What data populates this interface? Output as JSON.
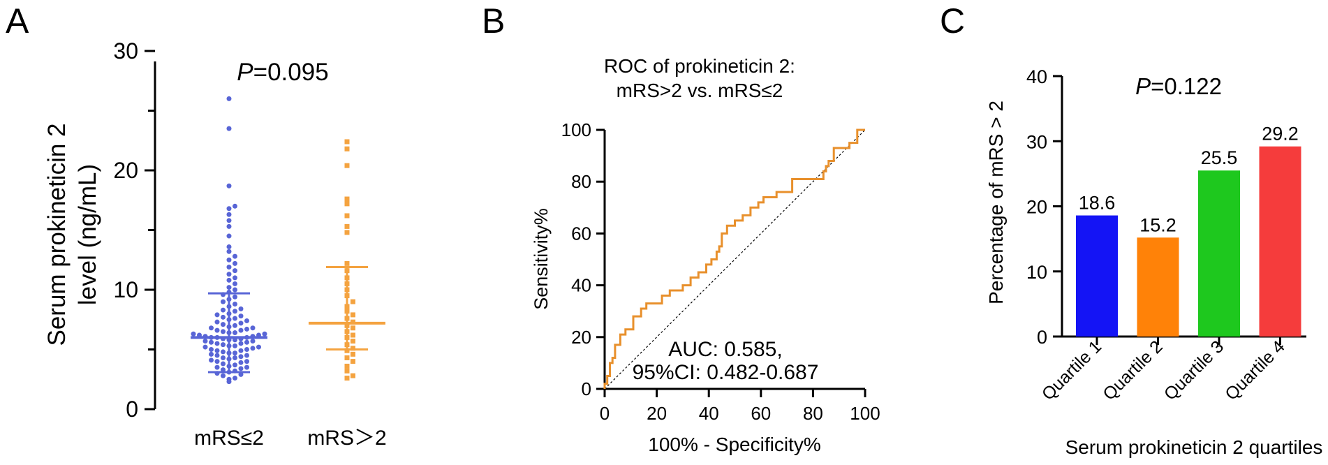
{
  "chart_data": [
    {
      "panel": "A",
      "type": "scatter",
      "ylabel_line1": "Serum prokineticin 2",
      "ylabel_line2": "level (ng/mL)",
      "annotation_italic": "P",
      "annotation_rest": "=0.095",
      "ylim": [
        0,
        30
      ],
      "yticks": [
        0,
        10,
        20,
        30
      ],
      "categories": [
        "mRS≤2",
        "mRS＞2"
      ],
      "series": [
        {
          "name": "mRS≤2",
          "color": "#5865d6",
          "median": 6.0,
          "q1": 3.1,
          "q3": 9.7,
          "values": [
            2.3,
            2.5,
            2.6,
            2.8,
            2.9,
            3.0,
            3.1,
            3.2,
            3.3,
            3.4,
            3.5,
            3.5,
            3.6,
            3.7,
            3.8,
            3.9,
            4.0,
            4.0,
            4.1,
            4.2,
            4.3,
            4.3,
            4.4,
            4.5,
            4.5,
            4.6,
            4.7,
            4.7,
            4.8,
            4.9,
            4.9,
            5.0,
            5.0,
            5.1,
            5.2,
            5.2,
            5.3,
            5.3,
            5.4,
            5.5,
            5.5,
            5.6,
            5.6,
            5.7,
            5.7,
            5.8,
            5.8,
            5.9,
            5.9,
            6.0,
            6.0,
            6.0,
            6.1,
            6.1,
            6.2,
            6.2,
            6.3,
            6.3,
            6.4,
            6.4,
            6.5,
            6.6,
            6.6,
            6.7,
            6.8,
            6.8,
            6.9,
            7.0,
            7.1,
            7.2,
            7.3,
            7.4,
            7.5,
            7.6,
            7.7,
            7.8,
            7.9,
            8.0,
            8.2,
            8.3,
            8.4,
            8.6,
            8.8,
            9.0,
            9.2,
            9.4,
            9.6,
            9.8,
            10.0,
            10.2,
            10.5,
            10.8,
            11.0,
            11.3,
            11.6,
            11.9,
            12.2,
            12.5,
            12.8,
            13.2,
            13.6,
            14.5,
            15.3,
            15.8,
            16.3,
            16.8,
            17.0,
            18.7,
            23.5,
            26.0
          ]
        },
        {
          "name": "mRS＞2",
          "color": "#f4a340",
          "median": 7.2,
          "q1": 5.0,
          "q3": 11.9,
          "values": [
            2.6,
            2.8,
            3.2,
            3.6,
            4.0,
            4.3,
            4.6,
            4.9,
            5.1,
            5.4,
            5.7,
            6.0,
            6.2,
            6.5,
            6.8,
            7.0,
            7.3,
            7.6,
            7.9,
            8.2,
            8.6,
            9.0,
            9.5,
            10.0,
            10.5,
            11.0,
            11.6,
            12.2,
            14.8,
            15.3,
            16.2,
            17.2,
            17.6,
            20.4,
            21.8,
            22.4
          ]
        }
      ]
    },
    {
      "panel": "B",
      "type": "line",
      "title_line1": "ROC of prokineticin 2:",
      "title_line2": "mRS>2  vs. mRS≤2",
      "xlabel": "100% - Specificity%",
      "ylabel": "Sensitivity%",
      "xlim": [
        0,
        100
      ],
      "ylim": [
        0,
        100
      ],
      "xticks": [
        0,
        20,
        40,
        60,
        80,
        100
      ],
      "yticks": [
        0,
        20,
        40,
        60,
        80,
        100
      ],
      "annotation_line1": "AUC: 0.585,",
      "annotation_line2": "95%CI: 0.482-0.687",
      "series": [
        {
          "name": "ROC",
          "color": "#e8902c",
          "x": [
            0,
            0,
            1,
            1,
            2,
            2,
            3,
            3,
            4,
            4,
            6,
            6,
            8,
            8,
            11,
            11,
            14,
            14,
            16,
            16,
            22,
            22,
            25,
            25,
            30,
            30,
            33,
            33,
            36,
            36,
            39,
            39,
            41,
            41,
            43,
            43,
            44,
            44,
            45,
            45,
            47,
            47,
            50,
            50,
            53,
            53,
            56,
            56,
            59,
            59,
            61,
            61,
            66,
            66,
            72,
            72,
            84,
            84,
            85,
            85,
            86,
            86,
            88,
            88,
            94,
            94,
            97,
            97,
            100
          ],
          "y": [
            0,
            2,
            2,
            5,
            5,
            10,
            10,
            12,
            12,
            17,
            17,
            21,
            21,
            23,
            23,
            28,
            28,
            31,
            31,
            33,
            33,
            36,
            36,
            38,
            38,
            40,
            40,
            43,
            43,
            45,
            45,
            48,
            48,
            50,
            50,
            53,
            53,
            55,
            55,
            60,
            60,
            63,
            63,
            65,
            65,
            67,
            67,
            70,
            70,
            72,
            72,
            74,
            74,
            76,
            76,
            81,
            81,
            84,
            84,
            86,
            86,
            88,
            88,
            93,
            93,
            95,
            95,
            100,
            100
          ]
        },
        {
          "name": "reference",
          "color": "#000000",
          "x": [
            0,
            100
          ],
          "y": [
            0,
            100
          ]
        }
      ]
    },
    {
      "panel": "C",
      "type": "bar",
      "xlabel": "Serum prokineticin 2 quartiles",
      "ylabel": "Percentage of mRS > 2",
      "annotation_italic": "P",
      "annotation_rest": "=0.122",
      "ylim": [
        0,
        40
      ],
      "yticks": [
        0,
        10,
        20,
        30,
        40
      ],
      "categories": [
        "Quartile 1",
        "Quartile 2",
        "Quartile 3",
        "Quartile 4"
      ],
      "values": [
        18.6,
        15.2,
        25.5,
        29.2
      ],
      "value_labels": [
        "18.6",
        "15.2",
        "25.5",
        "29.2"
      ],
      "colors": [
        "#1414f5",
        "#ff8208",
        "#1ec81e",
        "#f53c3c"
      ]
    }
  ],
  "panel_labels": [
    "A",
    "B",
    "C"
  ]
}
